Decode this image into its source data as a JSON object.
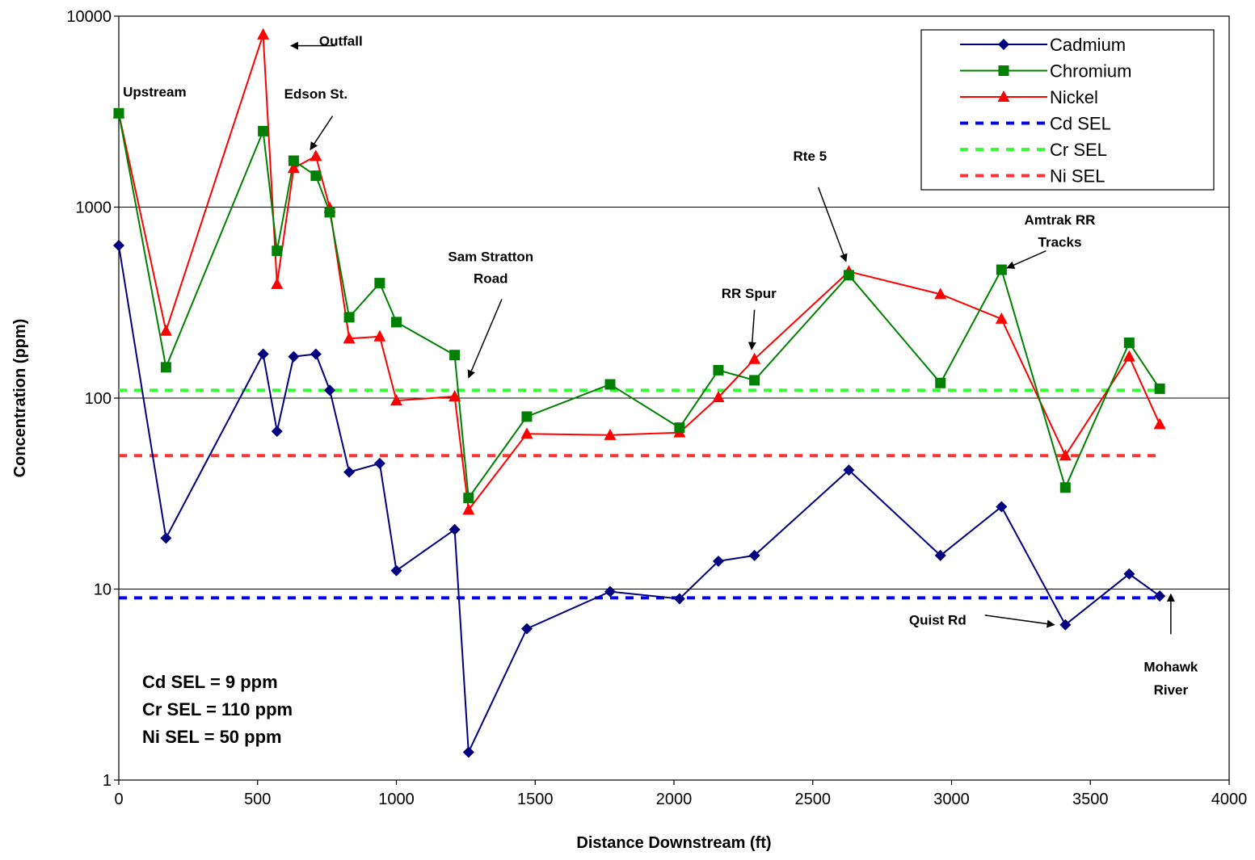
{
  "chart_data": {
    "type": "line",
    "title": "",
    "xlabel": "Distance Downstream (ft)",
    "ylabel": "Concentration (ppm)",
    "xlim": [
      0,
      4000
    ],
    "ylim": [
      1,
      10000
    ],
    "yscale": "log",
    "grid": "horizontal",
    "legend_position": "top-right",
    "x_ticks": [
      "0",
      "500",
      "1000",
      "1500",
      "2000",
      "2500",
      "3000",
      "3500",
      "4000"
    ],
    "y_ticks": [
      "1",
      "10",
      "100",
      "1000",
      "10000"
    ],
    "series": [
      {
        "name": "Cadmium",
        "color": "#000080",
        "marker": "diamond",
        "points": [
          [
            0,
            630
          ],
          [
            170,
            18.5
          ],
          [
            520,
            170
          ],
          [
            570,
            67
          ],
          [
            630,
            165
          ],
          [
            710,
            170
          ],
          [
            760,
            110
          ],
          [
            830,
            41
          ],
          [
            940,
            45.5
          ],
          [
            1000,
            12.5
          ],
          [
            1210,
            20.5
          ],
          [
            1260,
            1.4
          ],
          [
            1470,
            6.2
          ],
          [
            1770,
            9.7
          ],
          [
            2020,
            8.9
          ],
          [
            2160,
            14
          ],
          [
            2290,
            15
          ],
          [
            2630,
            42
          ],
          [
            2960,
            15
          ],
          [
            3180,
            27
          ],
          [
            3410,
            6.5
          ],
          [
            3640,
            12
          ],
          [
            3750,
            9.2
          ]
        ]
      },
      {
        "name": "Chromium",
        "color": "#008000",
        "marker": "square",
        "points": [
          [
            0,
            3100
          ],
          [
            170,
            145
          ],
          [
            520,
            2500
          ],
          [
            570,
            590
          ],
          [
            630,
            1750
          ],
          [
            710,
            1460
          ],
          [
            760,
            940
          ],
          [
            830,
            265
          ],
          [
            940,
            400
          ],
          [
            1000,
            250
          ],
          [
            1210,
            168
          ],
          [
            1260,
            30
          ],
          [
            1470,
            80
          ],
          [
            1770,
            118
          ],
          [
            2020,
            70
          ],
          [
            2160,
            140
          ],
          [
            2290,
            124
          ],
          [
            2630,
            440
          ],
          [
            2960,
            120
          ],
          [
            3180,
            470
          ],
          [
            3410,
            34
          ],
          [
            3640,
            195
          ],
          [
            3750,
            112
          ]
        ]
      },
      {
        "name": "Nickel",
        "color": "#ff0000",
        "marker": "triangle",
        "points": [
          [
            0,
            3100
          ],
          [
            170,
            225
          ],
          [
            520,
            8000
          ],
          [
            570,
            395
          ],
          [
            630,
            1600
          ],
          [
            710,
            1850
          ],
          [
            760,
            990
          ],
          [
            830,
            205
          ],
          [
            940,
            210
          ],
          [
            1000,
            97
          ],
          [
            1210,
            102
          ],
          [
            1260,
            26
          ],
          [
            1470,
            65
          ],
          [
            1770,
            64
          ],
          [
            2020,
            66
          ],
          [
            2160,
            101
          ],
          [
            2290,
            160
          ],
          [
            2630,
            460
          ],
          [
            2960,
            350
          ],
          [
            3180,
            260
          ],
          [
            3410,
            50
          ],
          [
            3640,
            165
          ],
          [
            3750,
            73
          ]
        ]
      },
      {
        "name": "Cd SEL",
        "color": "#0000ff",
        "dashed": true,
        "value": 9
      },
      {
        "name": "Cr SEL",
        "color": "#33ff33",
        "dashed": true,
        "value": 110
      },
      {
        "name": "Ni SEL",
        "color": "#ff3333",
        "dashed": true,
        "value": 50
      }
    ],
    "annotations": [
      {
        "text": "Upstream",
        "x": 15,
        "y": 3800
      },
      {
        "text": "Outfall",
        "x": 800,
        "y": 7000,
        "arrow_from": [
          780,
          7000
        ],
        "arrow_to": [
          620,
          7000
        ]
      },
      {
        "text": "Edson St.",
        "x": 710,
        "y": 3700,
        "arrow_from": [
          770,
          3000
        ],
        "arrow_to": [
          690,
          2000
        ]
      },
      {
        "text": "Sam Stratton",
        "x": 1340,
        "y": 520
      },
      {
        "text": "Road",
        "x": 1340,
        "y": 400,
        "arrow_from": [
          1380,
          330
        ],
        "arrow_to": [
          1260,
          128
        ]
      },
      {
        "text": "RR Spur",
        "x": 2270,
        "y": 335,
        "arrow_from": [
          2290,
          290
        ],
        "arrow_to": [
          2280,
          180
        ]
      },
      {
        "text": "Rte 5",
        "x": 2490,
        "y": 1750,
        "arrow_from": [
          2520,
          1270
        ],
        "arrow_to": [
          2620,
          520
        ]
      },
      {
        "text": "Amtrak RR",
        "x": 3390,
        "y": 810
      },
      {
        "text": "Tracks",
        "x": 3390,
        "y": 620,
        "arrow_from": [
          3340,
          590
        ],
        "arrow_to": [
          3200,
          480
        ]
      },
      {
        "text": "Quist Rd",
        "x": 2950,
        "y": 6.5,
        "arrow_from": [
          3120,
          7.3
        ],
        "arrow_to": [
          3370,
          6.5
        ]
      },
      {
        "text": "Mohawk",
        "x": 3790,
        "y": 3.7
      },
      {
        "text": "River",
        "x": 3790,
        "y": 2.8,
        "arrow_from": [
          3790,
          5.8
        ],
        "arrow_to": [
          3790,
          9.4
        ]
      }
    ],
    "notes": [
      "Cd SEL = 9 ppm",
      "Cr SEL = 110 ppm",
      "Ni SEL = 50 ppm"
    ]
  }
}
